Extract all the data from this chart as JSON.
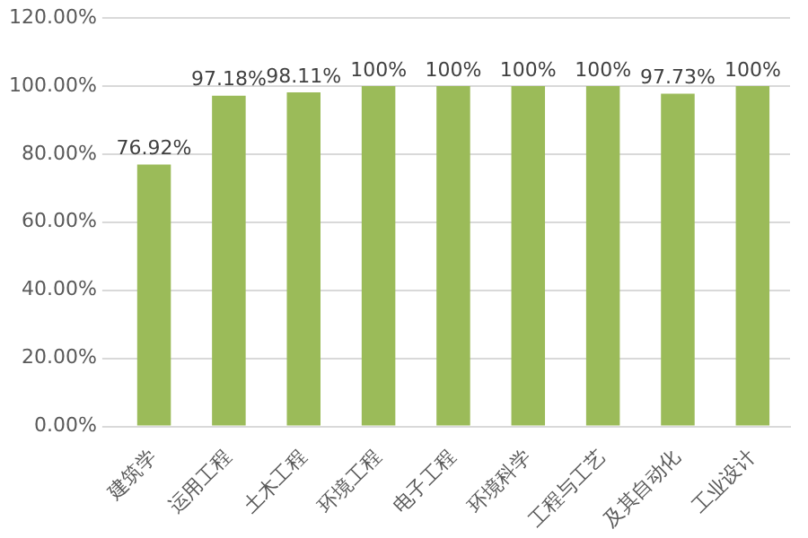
{
  "chart_data": {
    "type": "bar",
    "categories": [
      "建筑学",
      "运用工程",
      "土木工程",
      "环境工程",
      "电子工程",
      "环境科学",
      "工程与工艺",
      "及其自动化",
      "工业设计"
    ],
    "values": [
      76.92,
      97.18,
      98.11,
      100,
      100,
      100,
      100,
      97.73,
      100
    ],
    "value_labels": [
      "76.92%",
      "97.18%",
      "98.11%",
      "100%",
      "100%",
      "100%",
      "100%",
      "97.73%",
      "100%"
    ],
    "color": "#9bbb59",
    "ylim": [
      0,
      120
    ],
    "yticks": [
      {
        "value": 0,
        "label": "0.00%"
      },
      {
        "value": 20,
        "label": "20.00%"
      },
      {
        "value": 40,
        "label": "40.00%"
      },
      {
        "value": 60,
        "label": "60.00%"
      },
      {
        "value": 80,
        "label": "80.00%"
      },
      {
        "value": 100,
        "label": "100.00%"
      },
      {
        "value": 120,
        "label": "120.00%"
      }
    ],
    "grid": "y",
    "legend": false
  }
}
